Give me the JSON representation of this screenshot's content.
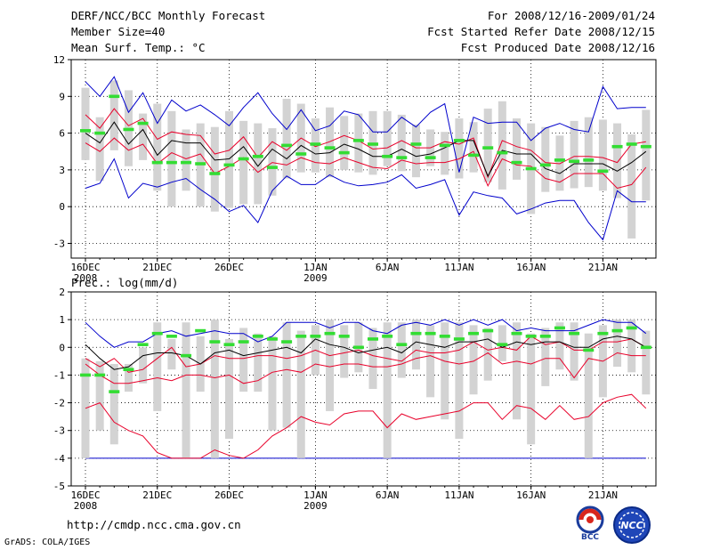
{
  "header": {
    "title": "DERF/NCC/BCC Monthly Forecast",
    "member": "Member Size=40",
    "variable": "Mean Surf. Temp.: °C",
    "period": "For 2008/12/16-2009/01/24",
    "refer": "Fcst Started Refer Date 2008/12/15",
    "produced": "Fcst Produced Date 2008/12/16"
  },
  "footer": {
    "url": "http://cmdp.ncc.cma.gov.cn",
    "grads": "GrADS: COLA/IGES",
    "logo_bcc": "BCC",
    "logo_ncc": "NCC"
  },
  "colors": {
    "box": "#d3d3d3",
    "median": "#000000",
    "mean_band": "#e8002a",
    "extreme": "#0000cc",
    "observed": "#33dd33",
    "grid": "#000000"
  },
  "chart_data": [
    {
      "type": "box",
      "title": "Mean Surf. Temp.: °C",
      "ylim": [
        -4.2,
        12
      ],
      "yticks": [
        -3,
        0,
        3,
        6,
        9,
        12
      ],
      "xtick_labels": [
        "16DEC",
        "21DEC",
        "26DEC",
        "1JAN",
        "6JAN",
        "11JAN",
        "16JAN",
        "21JAN"
      ],
      "xtick_days": [
        1,
        6,
        11,
        17,
        22,
        27,
        32,
        37
      ],
      "year_labels": [
        {
          "day": 1,
          "label": "2008"
        },
        {
          "day": 17,
          "label": "2009"
        }
      ],
      "days": 40,
      "box_high": [
        9.7,
        7.3,
        10.3,
        9.5,
        7.6,
        8.4,
        7.8,
        6.3,
        6.8,
        6.5,
        7.8,
        7.0,
        6.8,
        6.4,
        8.8,
        8.4,
        7.2,
        8.1,
        7.4,
        7.6,
        7.8,
        7.8,
        7.5,
        6.7,
        6.3,
        6.1,
        7.2,
        6.9,
        8.0,
        8.6,
        7.2,
        6.8,
        6.5,
        5.8,
        7.0,
        7.3,
        7.1,
        6.8,
        5.9,
        7.9
      ],
      "box_low": [
        3.8,
        2.1,
        4.6,
        3.3,
        3.8,
        1.3,
        0.0,
        1.3,
        0.0,
        -0.4,
        -0.1,
        0.2,
        0.2,
        0.9,
        2.3,
        2.8,
        2.8,
        2.4,
        3.0,
        2.8,
        2.6,
        3.3,
        2.9,
        2.4,
        3.3,
        2.6,
        2.3,
        2.8,
        2.0,
        1.4,
        2.2,
        -0.6,
        1.2,
        1.3,
        1.5,
        1.6,
        1.3,
        0.7,
        -2.6,
        0.5
      ],
      "mean_upper": [
        7.5,
        6.4,
        8.0,
        6.6,
        7.2,
        5.5,
        6.1,
        5.9,
        5.8,
        4.3,
        4.6,
        5.7,
        4.0,
        5.3,
        4.6,
        5.6,
        4.9,
        5.3,
        5.8,
        5.4,
        4.7,
        4.8,
        5.4,
        4.8,
        4.8,
        5.3,
        5.1,
        5.6,
        2.4,
        5.4,
        4.9,
        4.6,
        3.6,
        3.5,
        4.1,
        4.1,
        4.0,
        3.6,
        5.1,
        5.3
      ],
      "median": [
        6.0,
        5.2,
        6.9,
        5.1,
        6.3,
        4.2,
        5.4,
        5.2,
        5.2,
        3.8,
        3.9,
        4.9,
        3.3,
        4.7,
        3.9,
        5.0,
        4.3,
        4.4,
        5.1,
        4.7,
        4.1,
        4.1,
        4.7,
        4.1,
        4.3,
        4.8,
        5.4,
        5.4,
        2.5,
        4.6,
        4.3,
        4.3,
        3.1,
        2.7,
        3.5,
        3.5,
        3.5,
        2.9,
        3.6,
        4.5
      ],
      "mean_lower": [
        5.2,
        4.5,
        5.6,
        4.6,
        5.1,
        3.5,
        4.4,
        3.9,
        4.3,
        2.7,
        3.3,
        4.0,
        2.8,
        3.6,
        3.4,
        4.0,
        3.6,
        3.5,
        4.0,
        3.6,
        3.2,
        3.1,
        3.8,
        3.5,
        3.6,
        3.6,
        3.9,
        4.5,
        1.7,
        3.9,
        3.4,
        3.3,
        2.3,
        2.0,
        2.7,
        2.7,
        2.7,
        1.5,
        1.8,
        3.2
      ],
      "max_line": [
        10.2,
        9.0,
        10.6,
        7.7,
        9.3,
        6.8,
        8.7,
        7.8,
        8.3,
        7.5,
        6.6,
        8.1,
        9.3,
        7.6,
        6.3,
        7.9,
        6.2,
        6.6,
        7.8,
        7.5,
        6.1,
        6.1,
        7.3,
        6.5,
        7.7,
        8.4,
        2.8,
        7.3,
        6.8,
        6.9,
        6.9,
        5.4,
        6.4,
        6.8,
        6.3,
        6.1,
        9.8,
        8.0,
        8.1,
        8.1
      ],
      "min_line": [
        1.5,
        1.9,
        3.9,
        0.7,
        1.9,
        1.6,
        2.0,
        2.3,
        1.4,
        0.6,
        -0.4,
        0.1,
        -1.3,
        1.3,
        2.5,
        1.8,
        1.8,
        2.6,
        2.0,
        1.7,
        1.8,
        2.0,
        2.6,
        1.5,
        1.8,
        2.2,
        -0.7,
        1.2,
        0.9,
        0.7,
        -0.6,
        -0.2,
        0.3,
        0.5,
        0.5,
        -1.3,
        -2.7,
        1.3,
        0.4,
        0.4
      ],
      "observed": [
        6.2,
        6.0,
        9.0,
        6.3,
        6.8,
        3.6,
        3.6,
        3.6,
        3.5,
        2.7,
        3.4,
        3.9,
        4.1,
        3.2,
        5.0,
        4.3,
        5.1,
        4.8,
        4.4,
        5.4,
        5.1,
        4.1,
        4.0,
        5.1,
        4.0,
        5.0,
        5.4,
        4.2,
        4.8,
        4.4,
        3.6,
        3.1,
        3.4,
        3.8,
        3.7,
        3.8,
        2.9,
        4.9,
        5.1,
        4.9
      ]
    },
    {
      "type": "box",
      "title": "Prec.: log(mm/d)",
      "ylim": [
        -5,
        2
      ],
      "yticks": [
        -5,
        -4,
        -3,
        -2,
        -1,
        0,
        1,
        2
      ],
      "xtick_labels": [
        "16DEC",
        "21DEC",
        "26DEC",
        "1JAN",
        "6JAN",
        "11JAN",
        "16JAN",
        "21JAN"
      ],
      "xtick_days": [
        1,
        6,
        11,
        17,
        22,
        27,
        32,
        37
      ],
      "year_labels": [
        {
          "day": 1,
          "label": "2008"
        },
        {
          "day": 17,
          "label": "2009"
        }
      ],
      "days": 40,
      "floor_value": -4,
      "box_high": [
        -0.4,
        -0.5,
        -0.6,
        -0.6,
        0.0,
        0.9,
        0.3,
        0.9,
        0.4,
        1.0,
        0.3,
        0.7,
        0.5,
        0.4,
        0.9,
        0.6,
        0.8,
        1.0,
        0.8,
        0.9,
        0.7,
        0.9,
        0.9,
        1.0,
        0.8,
        0.9,
        0.9,
        0.8,
        0.7,
        0.8,
        0.9,
        0.5,
        0.7,
        0.9,
        0.9,
        0.5,
        0.8,
        1.0,
        1.0,
        0.6
      ],
      "box_low": [
        -4.0,
        -3.0,
        -3.5,
        -1.6,
        -1.3,
        -2.3,
        -0.8,
        -4.0,
        -1.6,
        -4.0,
        -3.3,
        -1.6,
        -1.6,
        -3.0,
        -2.9,
        -4.0,
        -1.0,
        -2.3,
        -1.1,
        -0.9,
        -1.5,
        -4.0,
        -1.1,
        -0.8,
        -1.8,
        -2.6,
        -3.3,
        -1.7,
        -1.2,
        -0.5,
        -2.6,
        -3.5,
        -1.4,
        -0.8,
        -1.2,
        -4.0,
        -1.8,
        -0.7,
        -0.9,
        -1.7
      ],
      "mean_upper": [
        -0.4,
        -0.7,
        -0.4,
        -0.9,
        -0.8,
        -0.4,
        0.0,
        -0.7,
        -0.6,
        -0.3,
        -0.4,
        -0.4,
        -0.3,
        -0.3,
        -0.4,
        -0.3,
        -0.1,
        -0.3,
        -0.2,
        -0.1,
        -0.3,
        -0.4,
        -0.5,
        -0.1,
        -0.2,
        -0.2,
        -0.1,
        0.2,
        -0.1,
        0.0,
        -0.1,
        0.4,
        0.1,
        0.2,
        -0.1,
        -0.1,
        0.2,
        0.2,
        0.3,
        0.0
      ],
      "median": [
        0.1,
        -0.4,
        -0.8,
        -0.7,
        -0.3,
        -0.2,
        -0.2,
        -0.3,
        -0.6,
        -0.2,
        -0.1,
        -0.3,
        -0.2,
        -0.1,
        0.0,
        -0.2,
        0.3,
        0.1,
        0.0,
        -0.2,
        -0.1,
        0.0,
        -0.2,
        0.2,
        0.1,
        0.0,
        0.2,
        0.2,
        0.3,
        0.0,
        0.2,
        0.1,
        0.2,
        0.2,
        0.0,
        0.0,
        0.3,
        0.4,
        0.3,
        0.0
      ],
      "mean_lower": [
        -0.6,
        -1.0,
        -1.3,
        -1.3,
        -1.2,
        -1.1,
        -1.2,
        -1.0,
        -1.0,
        -1.1,
        -1.0,
        -1.3,
        -1.2,
        -0.9,
        -0.8,
        -0.9,
        -0.6,
        -0.7,
        -0.6,
        -0.6,
        -0.7,
        -0.7,
        -0.6,
        -0.4,
        -0.3,
        -0.5,
        -0.6,
        -0.5,
        -0.2,
        -0.6,
        -0.5,
        -0.6,
        -0.4,
        -0.4,
        -1.1,
        -0.4,
        -0.5,
        -0.2,
        -0.3,
        -0.3
      ],
      "max_line": [
        0.9,
        0.4,
        0.0,
        0.2,
        0.2,
        0.5,
        0.6,
        0.4,
        0.5,
        0.6,
        0.5,
        0.5,
        0.2,
        0.4,
        0.9,
        0.9,
        0.9,
        0.7,
        0.9,
        0.9,
        0.6,
        0.5,
        0.8,
        0.9,
        0.8,
        1.0,
        0.8,
        1.0,
        0.8,
        1.0,
        0.6,
        0.7,
        0.6,
        0.6,
        0.6,
        0.8,
        1.0,
        0.9,
        0.9,
        0.5
      ],
      "min_line": [
        -2.2,
        -2.0,
        -2.7,
        -3.0,
        -3.2,
        -3.8,
        -4.0,
        -4.0,
        -4.0,
        -3.7,
        -3.9,
        -4.0,
        -3.7,
        -3.2,
        -2.9,
        -2.5,
        -2.7,
        -2.8,
        -2.4,
        -2.3,
        -2.3,
        -2.9,
        -2.4,
        -2.6,
        -2.5,
        -2.4,
        -2.3,
        -2.0,
        -2.0,
        -2.6,
        -2.1,
        -2.2,
        -2.6,
        -2.1,
        -2.6,
        -2.5,
        -2.0,
        -1.8,
        -1.7,
        -2.2
      ],
      "observed": [
        -1.0,
        -1.0,
        -1.6,
        -0.8,
        0.1,
        0.5,
        0.4,
        -0.3,
        0.6,
        0.2,
        0.1,
        0.2,
        0.4,
        0.3,
        0.2,
        0.4,
        0.4,
        0.5,
        0.4,
        0.0,
        0.3,
        0.4,
        0.1,
        0.5,
        0.5,
        0.4,
        0.3,
        0.5,
        0.6,
        0.1,
        0.5,
        0.4,
        0.4,
        0.7,
        0.5,
        -0.1,
        0.5,
        0.6,
        0.7,
        0.0
      ]
    }
  ]
}
